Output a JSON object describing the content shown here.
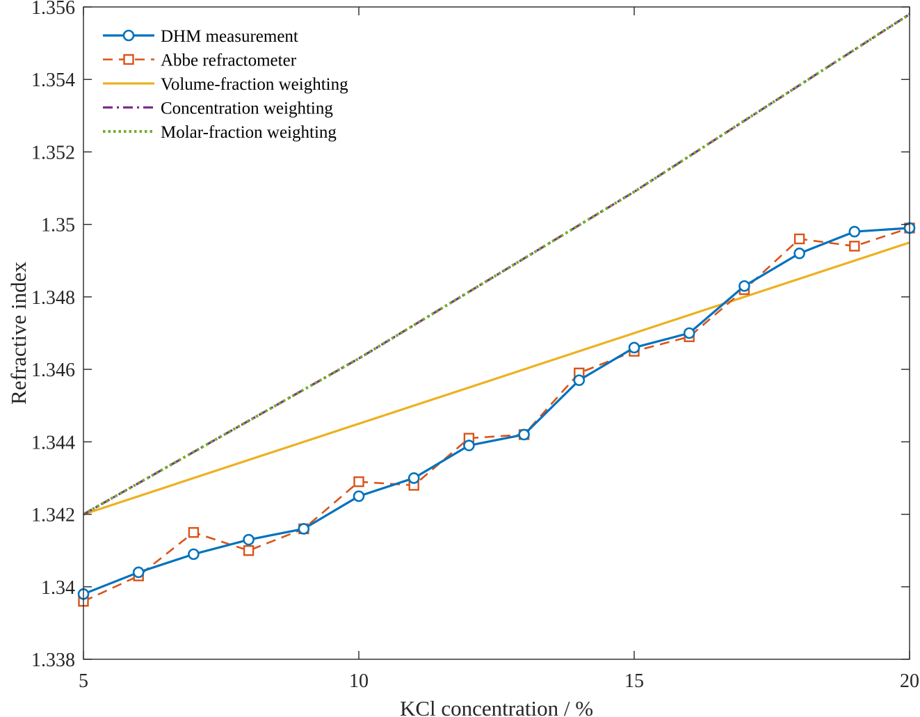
{
  "chart_data": {
    "type": "line",
    "title": "",
    "xlabel": "KCl concentration / %",
    "ylabel": "Refractive index",
    "xlim": [
      5,
      20
    ],
    "ylim": [
      1.338,
      1.356
    ],
    "xticks": [
      5,
      10,
      15,
      20
    ],
    "xtick_labels": [
      "5",
      "10",
      "15",
      "20"
    ],
    "yticks": [
      1.338,
      1.34,
      1.342,
      1.344,
      1.346,
      1.348,
      1.35,
      1.352,
      1.354,
      1.356
    ],
    "ytick_labels": [
      "1.338",
      "1.34",
      "1.342",
      "1.344",
      "1.346",
      "1.348",
      "1.35",
      "1.352",
      "1.354",
      "1.356"
    ],
    "grid": false,
    "legend_position": "top-left",
    "series": [
      {
        "name": "DHM measurement",
        "color": "#0072BD",
        "style": "solid",
        "marker": "circle",
        "x": [
          5,
          6,
          7,
          8,
          9,
          10,
          11,
          12,
          13,
          14,
          15,
          16,
          17,
          18,
          19,
          20
        ],
        "y": [
          1.3398,
          1.3404,
          1.3409,
          1.3413,
          1.3416,
          1.3425,
          1.343,
          1.3439,
          1.3442,
          1.3457,
          1.3466,
          1.347,
          1.3483,
          1.3492,
          1.3498,
          1.3499
        ]
      },
      {
        "name": "Abbe refractometer",
        "color": "#D95319",
        "style": "dashed",
        "marker": "square",
        "x": [
          5,
          6,
          7,
          8,
          9,
          10,
          11,
          12,
          13,
          14,
          15,
          16,
          17,
          18,
          19,
          20
        ],
        "y": [
          1.3396,
          1.3403,
          1.3415,
          1.341,
          1.3416,
          1.3429,
          1.3428,
          1.3441,
          1.3442,
          1.3459,
          1.3465,
          1.3469,
          1.3482,
          1.3496,
          1.3494,
          1.3499
        ]
      },
      {
        "name": "Volume-fraction weighting",
        "color": "#EDB120",
        "style": "solid",
        "marker": "none",
        "x": [
          5,
          20
        ],
        "y": [
          1.342,
          1.3495
        ]
      },
      {
        "name": "Concentration weighting",
        "color": "#7E2F8E",
        "style": "dashdot",
        "marker": "none",
        "x": [
          5,
          10,
          15,
          20
        ],
        "y": [
          1.342,
          1.3463,
          1.3509,
          1.3558
        ]
      },
      {
        "name": "Molar-fraction weighting",
        "color": "#77AC30",
        "style": "dotted",
        "marker": "none",
        "x": [
          5,
          10,
          15,
          20
        ],
        "y": [
          1.342,
          1.3463,
          1.3509,
          1.3558
        ]
      }
    ]
  }
}
